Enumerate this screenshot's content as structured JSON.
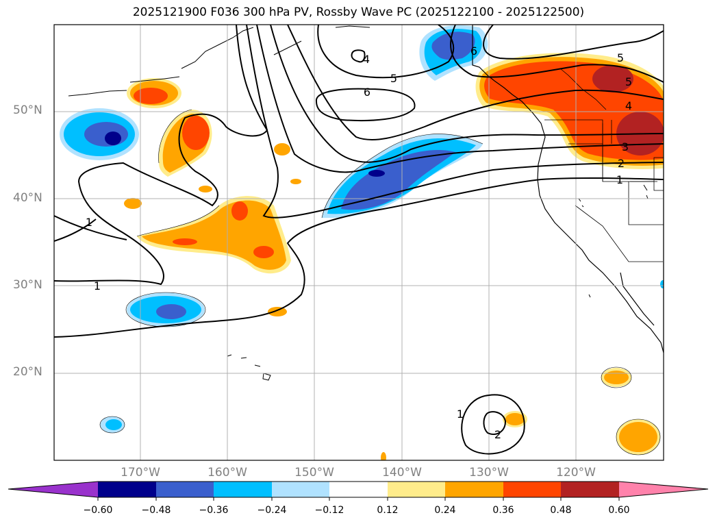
{
  "title": "2025121900 F036 300 hPa PV, Rossby Wave PC (2025122100 - 2025122500)",
  "map": {
    "projection": "PlateCarree",
    "extent_lon": [
      -180,
      -110
    ],
    "extent_lat": [
      10,
      60
    ],
    "lat_labels": [
      "20°N",
      "30°N",
      "40°N",
      "50°N"
    ],
    "lon_labels": [
      "170°W",
      "160°W",
      "150°W",
      "140°W",
      "130°W",
      "120°W"
    ],
    "gridlines": true,
    "coastlines": true,
    "state_borders": true
  },
  "contour_labels": [
    "1",
    "1",
    "1",
    "1",
    "2",
    "2",
    "3",
    "4",
    "5",
    "5",
    "6",
    "5",
    "6",
    "4"
  ],
  "colorbar": {
    "ticks": [
      "−0.60",
      "−0.48",
      "−0.36",
      "−0.24",
      "−0.12",
      "0.12",
      "0.24",
      "0.36",
      "0.48",
      "0.60"
    ],
    "colors": {
      "below": "#9932cc",
      "bins": [
        "#00008b",
        "#3a5fcd",
        "#00bfff",
        "#b0e2ff",
        "#ffffff",
        "#ffec8b",
        "#ffa500",
        "#ff4500",
        "#b22222"
      ],
      "above": "#ff82ab"
    },
    "extend": "both"
  }
}
